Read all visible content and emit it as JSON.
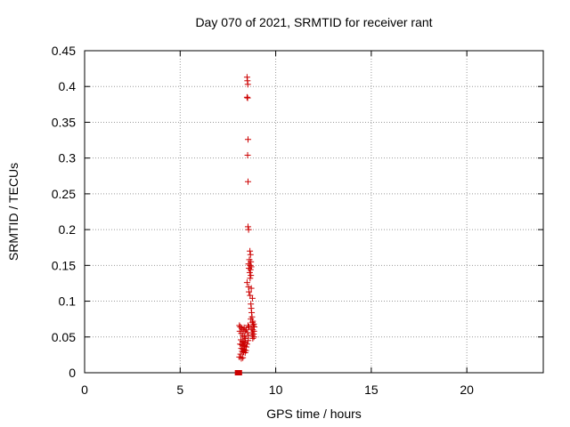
{
  "chart_data": {
    "type": "scatter",
    "title": "Day 070 of 2021, SRMTID for receiver rant",
    "xlabel": "GPS time / hours",
    "ylabel": "SRMTID / TECUs",
    "xlim": [
      0,
      24
    ],
    "ylim": [
      0,
      0.45
    ],
    "xticks": [
      0,
      5,
      10,
      15,
      20
    ],
    "yticks": [
      "0",
      "0.05",
      "0.1",
      "0.15",
      "0.2",
      "0.25",
      "0.3",
      "0.35",
      "0.4",
      "0.45"
    ],
    "grid": true,
    "marker": "+",
    "color": "#cc0000",
    "points": [
      [
        8.5,
        0.413
      ],
      [
        8.52,
        0.408
      ],
      [
        8.54,
        0.403
      ],
      [
        8.5,
        0.385
      ],
      [
        8.53,
        0.384
      ],
      [
        8.55,
        0.326
      ],
      [
        8.53,
        0.304
      ],
      [
        8.55,
        0.267
      ],
      [
        8.55,
        0.204
      ],
      [
        8.58,
        0.2
      ],
      [
        8.65,
        0.17
      ],
      [
        8.68,
        0.165
      ],
      [
        8.62,
        0.158
      ],
      [
        8.7,
        0.155
      ],
      [
        8.58,
        0.152
      ],
      [
        8.66,
        0.15
      ],
      [
        8.72,
        0.148
      ],
      [
        8.6,
        0.146
      ],
      [
        8.68,
        0.144
      ],
      [
        8.64,
        0.14
      ],
      [
        8.7,
        0.136
      ],
      [
        8.66,
        0.132
      ],
      [
        8.5,
        0.126
      ],
      [
        8.58,
        0.12
      ],
      [
        8.72,
        0.118
      ],
      [
        8.6,
        0.113
      ],
      [
        8.66,
        0.108
      ],
      [
        8.78,
        0.104
      ],
      [
        8.7,
        0.096
      ],
      [
        8.72,
        0.09
      ],
      [
        8.74,
        0.084
      ],
      [
        8.76,
        0.078
      ],
      [
        8.7,
        0.075
      ],
      [
        8.8,
        0.072
      ],
      [
        8.78,
        0.07
      ],
      [
        8.85,
        0.068
      ],
      [
        8.82,
        0.066
      ],
      [
        8.88,
        0.064
      ],
      [
        8.72,
        0.062
      ],
      [
        8.8,
        0.06
      ],
      [
        8.86,
        0.058
      ],
      [
        8.76,
        0.056
      ],
      [
        8.84,
        0.054
      ],
      [
        8.78,
        0.052
      ],
      [
        8.86,
        0.05
      ],
      [
        8.8,
        0.048
      ],
      [
        8.1,
        0.066
      ],
      [
        8.15,
        0.064
      ],
      [
        8.22,
        0.062
      ],
      [
        8.3,
        0.06
      ],
      [
        8.35,
        0.063
      ],
      [
        8.4,
        0.058
      ],
      [
        8.12,
        0.058
      ],
      [
        8.2,
        0.055
      ],
      [
        8.28,
        0.052
      ],
      [
        8.36,
        0.05
      ],
      [
        8.42,
        0.048
      ],
      [
        8.18,
        0.046
      ],
      [
        8.26,
        0.044
      ],
      [
        8.34,
        0.043
      ],
      [
        8.4,
        0.042
      ],
      [
        8.14,
        0.04
      ],
      [
        8.22,
        0.039
      ],
      [
        8.3,
        0.038
      ],
      [
        8.38,
        0.037
      ],
      [
        8.46,
        0.036
      ],
      [
        8.2,
        0.034
      ],
      [
        8.28,
        0.033
      ],
      [
        8.36,
        0.032
      ],
      [
        8.44,
        0.031
      ],
      [
        8.24,
        0.03
      ],
      [
        8.32,
        0.029
      ],
      [
        8.4,
        0.028
      ],
      [
        8.16,
        0.026
      ],
      [
        8.1,
        0.022
      ],
      [
        8.2,
        0.02
      ],
      [
        8.28,
        0.021
      ],
      [
        8.55,
        0.066
      ],
      [
        8.6,
        0.064
      ],
      [
        8.52,
        0.056
      ],
      [
        8.58,
        0.052
      ],
      [
        8.56,
        0.045
      ],
      [
        8.5,
        0.04
      ],
      [
        8.46,
        0.06
      ]
    ],
    "squares": [
      [
        8.0,
        0.0
      ],
      [
        8.05,
        0.0
      ],
      [
        8.1,
        0.0
      ]
    ]
  }
}
